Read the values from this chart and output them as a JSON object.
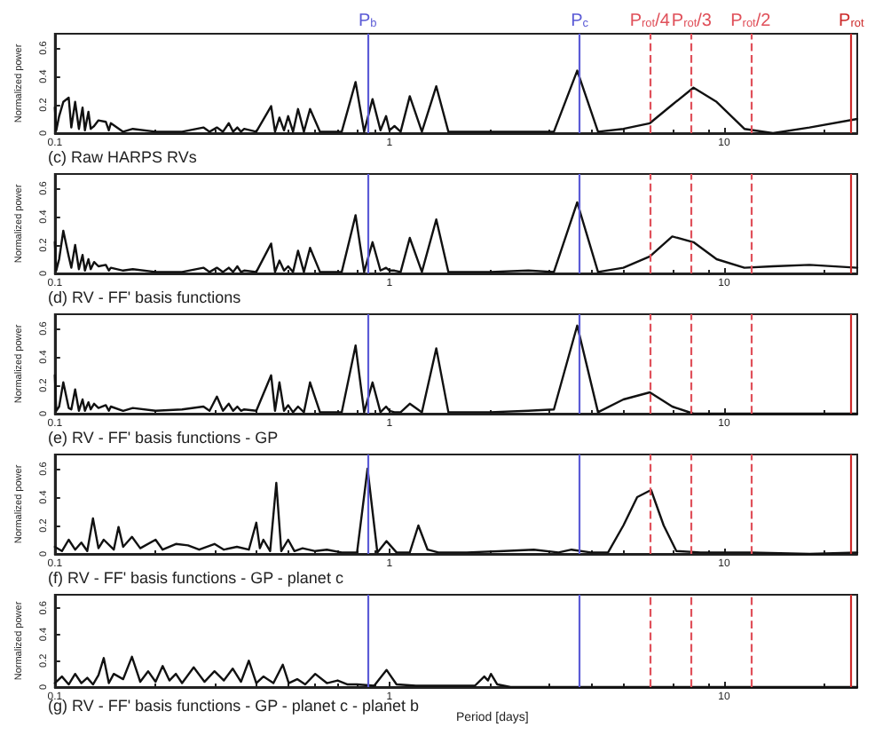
{
  "chart_data": [
    {
      "type": "line",
      "title": "(c) Raw HARPS RVs",
      "ylabel": "Normalized power",
      "log": "x",
      "marker": "none",
      "line_style": "solid",
      "xlim": [
        0.1,
        25
      ],
      "xticks": [
        0.1,
        1,
        10
      ],
      "ylim": [
        0,
        0.7
      ],
      "yticks": [
        0,
        0.2,
        0.4,
        0.6
      ],
      "series": [
        {
          "color": "#111111",
          "x": [
            0.1,
            0.101,
            0.103,
            0.106,
            0.11,
            0.112,
            0.115,
            0.118,
            0.121,
            0.123,
            0.126,
            0.128,
            0.131,
            0.135,
            0.142,
            0.145,
            0.147,
            0.16,
            0.171,
            0.2,
            0.24,
            0.278,
            0.29,
            0.305,
            0.318,
            0.331,
            0.341,
            0.351,
            0.36,
            0.368,
            0.4,
            0.443,
            0.455,
            0.469,
            0.484,
            0.498,
            0.515,
            0.533,
            0.555,
            0.579,
            0.62,
            0.72,
            0.792,
            0.84,
            0.89,
            0.94,
            0.977,
            1.0,
            1.035,
            1.08,
            1.15,
            1.25,
            1.38,
            1.5,
            2.0,
            2.6,
            3.1,
            3.64,
            4.2,
            5.0,
            6.0,
            7.0,
            8.1,
            9.5,
            11.5,
            14,
            18,
            25
          ],
          "values": [
            0.18,
            0.02,
            0.12,
            0.22,
            0.25,
            0.04,
            0.22,
            0.03,
            0.18,
            0.02,
            0.15,
            0.03,
            0.05,
            0.09,
            0.08,
            0.02,
            0.07,
            0.01,
            0.03,
            0.01,
            0.01,
            0.04,
            0.01,
            0.04,
            0.01,
            0.07,
            0.01,
            0.04,
            0.01,
            0.03,
            0.01,
            0.19,
            0.01,
            0.11,
            0.02,
            0.12,
            0.01,
            0.17,
            0.01,
            0.17,
            0.01,
            0.01,
            0.36,
            0.01,
            0.24,
            0.02,
            0.12,
            0.02,
            0.05,
            0.01,
            0.26,
            0.01,
            0.33,
            0.01,
            0.01,
            0.01,
            0.01,
            0.44,
            0.01,
            0.03,
            0.07,
            0.2,
            0.32,
            0.22,
            0.03,
            0.0,
            0.04,
            0.1
          ]
        }
      ],
      "ref_lines": [
        {
          "axis": "x",
          "value": 0.86,
          "label": "P$_{b}$",
          "color": "#5b5bd6",
          "line_style": "solid"
        },
        {
          "axis": "x",
          "value": 3.7,
          "label": "P$_{c}$",
          "color": "#5b5bd6",
          "line_style": "solid"
        },
        {
          "axis": "x",
          "value": 6,
          "label": "P$_{rot}$/4",
          "color": "#e0505a",
          "line_style": "dashed"
        },
        {
          "axis": "x",
          "value": 8,
          "label": "P$_{rot}$/3",
          "color": "#e0505a",
          "line_style": "dashed"
        },
        {
          "axis": "x",
          "value": 12,
          "label": "P$_{rot}$/2",
          "color": "#e0505a",
          "line_style": "dashed"
        },
        {
          "axis": "x",
          "value": 24,
          "label": "P$_{rot}$",
          "color": "#cc2a2a",
          "line_style": "solid"
        }
      ]
    },
    {
      "type": "line",
      "title": "(d) RV - FF' basis functions",
      "ylabel": "Normalized power",
      "log": "x",
      "marker": "none",
      "line_style": "solid",
      "xlim": [
        0.1,
        25
      ],
      "xticks": [
        0.1,
        1,
        10
      ],
      "ylim": [
        0,
        0.7
      ],
      "yticks": [
        0,
        0.2,
        0.4,
        0.6
      ],
      "series": [
        {
          "color": "#111111",
          "x": [
            0.1,
            0.101,
            0.103,
            0.106,
            0.11,
            0.112,
            0.115,
            0.118,
            0.121,
            0.123,
            0.126,
            0.128,
            0.131,
            0.135,
            0.142,
            0.145,
            0.147,
            0.16,
            0.171,
            0.2,
            0.24,
            0.278,
            0.29,
            0.305,
            0.318,
            0.331,
            0.341,
            0.351,
            0.36,
            0.368,
            0.4,
            0.443,
            0.455,
            0.469,
            0.484,
            0.498,
            0.515,
            0.533,
            0.555,
            0.579,
            0.62,
            0.72,
            0.792,
            0.84,
            0.89,
            0.94,
            0.977,
            1.0,
            1.035,
            1.08,
            1.15,
            1.25,
            1.38,
            1.5,
            2.0,
            2.6,
            3.1,
            3.64,
            4.2,
            5.0,
            6.0,
            7.0,
            8.1,
            9.5,
            11.5,
            14,
            18,
            25
          ],
          "values": [
            0.22,
            0.02,
            0.1,
            0.3,
            0.12,
            0.04,
            0.2,
            0.03,
            0.13,
            0.02,
            0.1,
            0.03,
            0.08,
            0.05,
            0.06,
            0.02,
            0.04,
            0.02,
            0.03,
            0.01,
            0.01,
            0.04,
            0.01,
            0.04,
            0.01,
            0.04,
            0.01,
            0.05,
            0.01,
            0.02,
            0.01,
            0.21,
            0.01,
            0.09,
            0.02,
            0.05,
            0.01,
            0.16,
            0.01,
            0.18,
            0.01,
            0.01,
            0.41,
            0.01,
            0.22,
            0.02,
            0.04,
            0.02,
            0.02,
            0.01,
            0.25,
            0.01,
            0.38,
            0.01,
            0.01,
            0.02,
            0.01,
            0.5,
            0.01,
            0.04,
            0.12,
            0.26,
            0.22,
            0.1,
            0.04,
            0.05,
            0.06,
            0.04
          ]
        }
      ],
      "ref_lines": [
        {
          "axis": "x",
          "value": 0.86,
          "label": null,
          "color": "#5b5bd6",
          "line_style": "solid"
        },
        {
          "axis": "x",
          "value": 3.7,
          "label": null,
          "color": "#5b5bd6",
          "line_style": "solid"
        },
        {
          "axis": "x",
          "value": 6,
          "label": null,
          "color": "#e0505a",
          "line_style": "dashed"
        },
        {
          "axis": "x",
          "value": 8,
          "label": null,
          "color": "#e0505a",
          "line_style": "dashed"
        },
        {
          "axis": "x",
          "value": 12,
          "label": null,
          "color": "#e0505a",
          "line_style": "dashed"
        },
        {
          "axis": "x",
          "value": 24,
          "label": null,
          "color": "#cc2a2a",
          "line_style": "solid"
        }
      ]
    },
    {
      "type": "line",
      "title": "(e) RV - FF' basis functions - GP",
      "ylabel": "Normalized power",
      "log": "x",
      "marker": "none",
      "line_style": "solid",
      "xlim": [
        0.1,
        25
      ],
      "xticks": [
        0.1,
        1,
        10
      ],
      "ylim": [
        0,
        0.7
      ],
      "yticks": [
        0,
        0.2,
        0.4,
        0.6
      ],
      "series": [
        {
          "color": "#111111",
          "x": [
            0.1,
            0.101,
            0.103,
            0.106,
            0.11,
            0.112,
            0.115,
            0.118,
            0.121,
            0.123,
            0.126,
            0.128,
            0.131,
            0.135,
            0.142,
            0.145,
            0.147,
            0.16,
            0.171,
            0.2,
            0.24,
            0.278,
            0.29,
            0.305,
            0.318,
            0.331,
            0.341,
            0.351,
            0.36,
            0.368,
            0.4,
            0.443,
            0.455,
            0.469,
            0.484,
            0.498,
            0.515,
            0.533,
            0.555,
            0.579,
            0.62,
            0.72,
            0.792,
            0.84,
            0.89,
            0.94,
            0.977,
            1.0,
            1.035,
            1.08,
            1.15,
            1.25,
            1.38,
            1.5,
            2.0,
            2.6,
            3.1,
            3.64,
            4.2,
            5.0,
            6.0,
            7.0,
            8.1,
            9.5,
            11.5,
            14,
            18,
            25
          ],
          "values": [
            0.27,
            0.02,
            0.05,
            0.22,
            0.04,
            0.03,
            0.17,
            0.02,
            0.1,
            0.02,
            0.08,
            0.03,
            0.07,
            0.04,
            0.06,
            0.02,
            0.05,
            0.02,
            0.04,
            0.02,
            0.03,
            0.05,
            0.02,
            0.12,
            0.02,
            0.07,
            0.02,
            0.05,
            0.02,
            0.03,
            0.02,
            0.27,
            0.02,
            0.22,
            0.02,
            0.06,
            0.01,
            0.05,
            0.01,
            0.22,
            0.01,
            0.01,
            0.48,
            0.01,
            0.22,
            0.01,
            0.05,
            0.02,
            0.01,
            0.01,
            0.07,
            0.01,
            0.46,
            0.01,
            0.01,
            0.02,
            0.03,
            0.62,
            0.01,
            0.1,
            0.15,
            0.05,
            0.0,
            0.0,
            0.0,
            0.0,
            0.0,
            0.0
          ]
        }
      ],
      "ref_lines": [
        {
          "axis": "x",
          "value": 0.86,
          "label": null,
          "color": "#5b5bd6",
          "line_style": "solid"
        },
        {
          "axis": "x",
          "value": 3.7,
          "label": null,
          "color": "#5b5bd6",
          "line_style": "solid"
        },
        {
          "axis": "x",
          "value": 6,
          "label": null,
          "color": "#e0505a",
          "line_style": "dashed"
        },
        {
          "axis": "x",
          "value": 8,
          "label": null,
          "color": "#e0505a",
          "line_style": "dashed"
        },
        {
          "axis": "x",
          "value": 12,
          "label": null,
          "color": "#e0505a",
          "line_style": "dashed"
        },
        {
          "axis": "x",
          "value": 24,
          "label": null,
          "color": "#cc2a2a",
          "line_style": "solid"
        }
      ]
    },
    {
      "type": "line",
      "title": "(f) RV - FF' basis functions - GP - planet c",
      "ylabel": "Normalized power",
      "log": "x",
      "marker": "none",
      "line_style": "solid",
      "xlim": [
        0.1,
        25
      ],
      "xticks": [
        0.1,
        1,
        10
      ],
      "ylim": [
        0,
        0.7
      ],
      "yticks": [
        0,
        0.2,
        0.4,
        0.6
      ],
      "series": [
        {
          "color": "#111111",
          "x": [
            0.1,
            0.105,
            0.11,
            0.115,
            0.12,
            0.125,
            0.13,
            0.135,
            0.14,
            0.15,
            0.155,
            0.16,
            0.17,
            0.18,
            0.2,
            0.21,
            0.23,
            0.25,
            0.27,
            0.3,
            0.32,
            0.35,
            0.38,
            0.4,
            0.41,
            0.42,
            0.44,
            0.459,
            0.475,
            0.498,
            0.52,
            0.55,
            0.6,
            0.65,
            0.72,
            0.8,
            0.86,
            0.92,
            0.98,
            1.05,
            1.15,
            1.22,
            1.3,
            1.4,
            1.7,
            2.2,
            2.7,
            3.2,
            3.5,
            4.0,
            4.5,
            5.0,
            5.5,
            6.05,
            6.6,
            7.2,
            8.5,
            12,
            18,
            25
          ],
          "values": [
            0.05,
            0.02,
            0.1,
            0.03,
            0.08,
            0.02,
            0.25,
            0.04,
            0.1,
            0.03,
            0.19,
            0.05,
            0.12,
            0.04,
            0.1,
            0.03,
            0.07,
            0.06,
            0.03,
            0.07,
            0.03,
            0.05,
            0.03,
            0.22,
            0.04,
            0.1,
            0.02,
            0.5,
            0.02,
            0.1,
            0.02,
            0.04,
            0.02,
            0.03,
            0.01,
            0.01,
            0.6,
            0.01,
            0.09,
            0.01,
            0.01,
            0.2,
            0.03,
            0.01,
            0.01,
            0.02,
            0.03,
            0.01,
            0.03,
            0.01,
            0.01,
            0.2,
            0.4,
            0.45,
            0.2,
            0.02,
            0.01,
            0.01,
            0.0,
            0.01
          ]
        }
      ],
      "ref_lines": [
        {
          "axis": "x",
          "value": 0.86,
          "label": null,
          "color": "#5b5bd6",
          "line_style": "solid"
        },
        {
          "axis": "x",
          "value": 3.7,
          "label": null,
          "color": "#5b5bd6",
          "line_style": "solid"
        },
        {
          "axis": "x",
          "value": 6,
          "label": null,
          "color": "#e0505a",
          "line_style": "dashed"
        },
        {
          "axis": "x",
          "value": 8,
          "label": null,
          "color": "#e0505a",
          "line_style": "dashed"
        },
        {
          "axis": "x",
          "value": 12,
          "label": null,
          "color": "#e0505a",
          "line_style": "dashed"
        },
        {
          "axis": "x",
          "value": 24,
          "label": null,
          "color": "#cc2a2a",
          "line_style": "solid"
        }
      ]
    },
    {
      "type": "line",
      "title": "(g) RV - FF' basis functions - GP - planet c - planet b",
      "ylabel": "Normalized power",
      "xlabel": "Period [days]",
      "log": "x",
      "marker": "none",
      "line_style": "solid",
      "xlim": [
        0.1,
        25
      ],
      "xticks": [
        0.1,
        1,
        10
      ],
      "ylim": [
        0,
        0.7
      ],
      "yticks": [
        0,
        0.2,
        0.4,
        0.6
      ],
      "series": [
        {
          "color": "#111111",
          "x": [
            0.1,
            0.105,
            0.11,
            0.115,
            0.12,
            0.125,
            0.13,
            0.135,
            0.14,
            0.145,
            0.15,
            0.16,
            0.17,
            0.18,
            0.19,
            0.2,
            0.21,
            0.22,
            0.23,
            0.24,
            0.26,
            0.28,
            0.3,
            0.32,
            0.34,
            0.36,
            0.38,
            0.4,
            0.42,
            0.45,
            0.48,
            0.5,
            0.53,
            0.56,
            0.6,
            0.65,
            0.7,
            0.75,
            0.8,
            0.9,
            0.98,
            1.05,
            1.2,
            1.5,
            1.8,
            1.92,
            1.97,
            2.01,
            2.1,
            2.3,
            3,
            5,
            10,
            25
          ],
          "values": [
            0.03,
            0.08,
            0.02,
            0.1,
            0.03,
            0.07,
            0.02,
            0.09,
            0.22,
            0.03,
            0.1,
            0.06,
            0.23,
            0.04,
            0.12,
            0.04,
            0.16,
            0.05,
            0.1,
            0.03,
            0.15,
            0.04,
            0.12,
            0.05,
            0.14,
            0.04,
            0.2,
            0.03,
            0.08,
            0.03,
            0.17,
            0.03,
            0.06,
            0.02,
            0.1,
            0.03,
            0.05,
            0.02,
            0.02,
            0.01,
            0.13,
            0.02,
            0.01,
            0.01,
            0.01,
            0.08,
            0.05,
            0.1,
            0.02,
            0.0,
            0.0,
            0.0,
            0.0,
            0.0
          ]
        }
      ],
      "ref_lines": [
        {
          "axis": "x",
          "value": 0.86,
          "label": null,
          "color": "#5b5bd6",
          "line_style": "solid"
        },
        {
          "axis": "x",
          "value": 3.7,
          "label": null,
          "color": "#5b5bd6",
          "line_style": "solid"
        },
        {
          "axis": "x",
          "value": 6,
          "label": null,
          "color": "#e0505a",
          "line_style": "dashed"
        },
        {
          "axis": "x",
          "value": 8,
          "label": null,
          "color": "#e0505a",
          "line_style": "dashed"
        },
        {
          "axis": "x",
          "value": 12,
          "label": null,
          "color": "#e0505a",
          "line_style": "dashed"
        },
        {
          "axis": "x",
          "value": 24,
          "label": null,
          "color": "#cc2a2a",
          "line_style": "solid"
        }
      ]
    }
  ]
}
